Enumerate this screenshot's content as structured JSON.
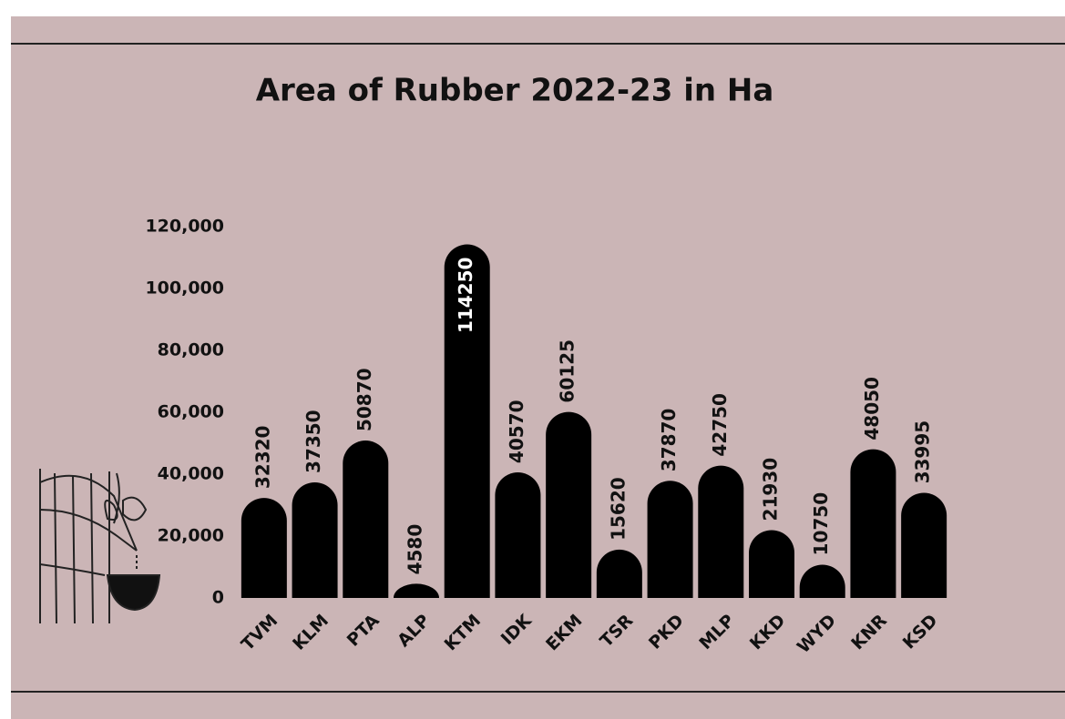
{
  "chart_data": {
    "type": "bar",
    "title": "Area of Rubber 2022-23 in Ha",
    "categories": [
      "TVM",
      "KLM",
      "PTA",
      "ALP",
      "KTM",
      "IDK",
      "EKM",
      "TSR",
      "PKD",
      "MLP",
      "KKD",
      "WYD",
      "KNR",
      "KSD"
    ],
    "values": [
      32320,
      37350,
      50870,
      4580,
      114250,
      40570,
      60125,
      15620,
      37870,
      42750,
      21930,
      10750,
      48050,
      33995
    ],
    "color": "#000000",
    "ylim": [
      0,
      120000
    ],
    "yticks": [
      0,
      {
        "value": 20000,
        "label": "20,000"
      },
      {
        "value": 40000,
        "label": "40,000"
      },
      {
        "value": 60000,
        "label": "60,000"
      },
      {
        "value": 80000,
        "label": "80,000"
      },
      {
        "value": 100000,
        "label": "100,000"
      },
      {
        "value": 120000,
        "label": "120,000"
      }
    ],
    "grid": false
  }
}
